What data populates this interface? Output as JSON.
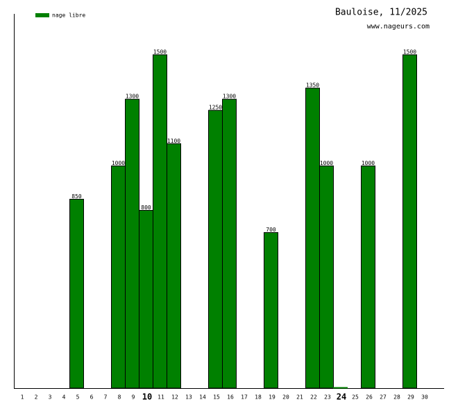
{
  "chart_data": {
    "type": "bar",
    "title": "Bauloise, 11/2025",
    "subtitle": "www.nageurs.com",
    "categories": [
      "1",
      "2",
      "3",
      "4",
      "5",
      "6",
      "7",
      "8",
      "9",
      "10",
      "11",
      "12",
      "13",
      "14",
      "15",
      "16",
      "17",
      "18",
      "19",
      "20",
      "21",
      "22",
      "23",
      "24",
      "25",
      "26",
      "27",
      "28",
      "29",
      "30"
    ],
    "series": [
      {
        "name": "nage libre",
        "color": "#008000",
        "values": [
          null,
          null,
          null,
          null,
          850,
          null,
          null,
          1000,
          1300,
          800,
          1500,
          1100,
          null,
          null,
          1250,
          1300,
          null,
          null,
          700,
          null,
          null,
          1350,
          1000,
          0,
          null,
          1000,
          null,
          null,
          1500,
          null
        ]
      }
    ],
    "bold_categories": [
      9,
      23
    ]
  }
}
